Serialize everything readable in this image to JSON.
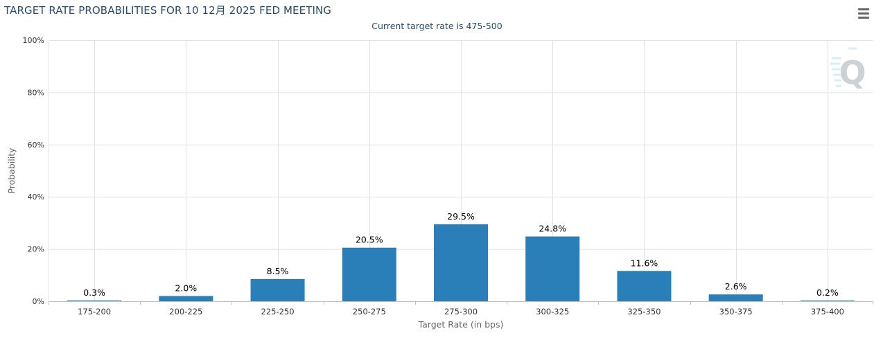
{
  "header": {
    "title": "TARGET RATE PROBABILITIES FOR 10 12月 2025 FED MEETING",
    "subtitle": "Current target rate is 475-500"
  },
  "toolbar": {
    "menu_icon": "hamburger-menu-icon"
  },
  "watermark": {
    "icon": "cme-fedwatch-q-logo",
    "letter": "Q"
  },
  "colors": {
    "bar": "#2a7fb8",
    "grid": "#e2e2e2",
    "title": "#274b6d",
    "axis_text": "#333333"
  },
  "chart_data": {
    "type": "bar",
    "xlabel": "Target Rate (in bps)",
    "ylabel": "Probability",
    "ylim": [
      0,
      100
    ],
    "yticks": [
      "0%",
      "20%",
      "40%",
      "60%",
      "80%",
      "100%"
    ],
    "grid": true,
    "categories": [
      "175-200",
      "200-225",
      "225-250",
      "250-275",
      "275-300",
      "300-325",
      "325-350",
      "350-375",
      "375-400"
    ],
    "values": [
      0.3,
      2.0,
      8.5,
      20.5,
      29.5,
      24.8,
      11.6,
      2.6,
      0.2
    ],
    "data_labels": [
      "0.3%",
      "2.0%",
      "8.5%",
      "20.5%",
      "29.5%",
      "24.8%",
      "11.6%",
      "2.6%",
      "0.2%"
    ]
  }
}
